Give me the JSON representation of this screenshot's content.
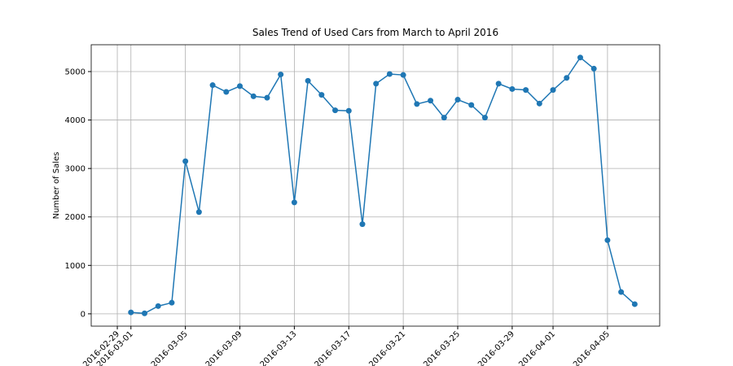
{
  "chart_data": {
    "type": "line",
    "title": "Sales Trend of Used Cars from March to April 2016",
    "y_label": "Number of Sales",
    "x": [
      "2016-03-01",
      "2016-03-02",
      "2016-03-03",
      "2016-03-04",
      "2016-03-05",
      "2016-03-06",
      "2016-03-07",
      "2016-03-08",
      "2016-03-09",
      "2016-03-10",
      "2016-03-11",
      "2016-03-12",
      "2016-03-13",
      "2016-03-14",
      "2016-03-15",
      "2016-03-16",
      "2016-03-17",
      "2016-03-18",
      "2016-03-19",
      "2016-03-20",
      "2016-03-21",
      "2016-03-22",
      "2016-03-23",
      "2016-03-24",
      "2016-03-25",
      "2016-03-26",
      "2016-03-27",
      "2016-03-28",
      "2016-03-29",
      "2016-03-30",
      "2016-03-31",
      "2016-04-01",
      "2016-04-02",
      "2016-04-03",
      "2016-04-04",
      "2016-04-05",
      "2016-04-06",
      "2016-04-07"
    ],
    "series": [
      {
        "name": "Sales",
        "color": "#1f77b4",
        "values": [
          30,
          10,
          160,
          230,
          3150,
          2100,
          4720,
          4580,
          4700,
          4490,
          4460,
          4940,
          2300,
          4810,
          4520,
          4200,
          4190,
          1850,
          4750,
          4950,
          4930,
          4330,
          4400,
          4050,
          4420,
          4310,
          4050,
          4750,
          4640,
          4620,
          4340,
          4620,
          4870,
          5290,
          5060,
          1520,
          450,
          200
        ]
      }
    ],
    "xlim": [
      "2016-02-27T02:00",
      "2016-04-08T20:00"
    ],
    "xticks": [
      "2016-02-29",
      "2016-03-01",
      "2016-03-05",
      "2016-03-09",
      "2016-03-13",
      "2016-03-17",
      "2016-03-21",
      "2016-03-25",
      "2016-03-29",
      "2016-04-01",
      "2016-04-05"
    ],
    "ylim": [
      -254,
      5554
    ],
    "yticks": [
      0,
      1000,
      2000,
      3000,
      4000,
      5000
    ],
    "grid": true
  }
}
